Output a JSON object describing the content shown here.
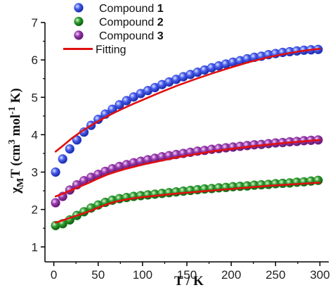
{
  "chart_data": {
    "type": "scatter",
    "xlabel": "T / K",
    "ylabel_parts": {
      "chi": "χ",
      "sub": "M",
      "t": "T (cm",
      "sup3": "3",
      "mol": " mol",
      "supm1": "-1",
      "k": " K)"
    },
    "xlim": [
      -10,
      310
    ],
    "ylim": [
      0.6,
      7.0
    ],
    "x_ticks": [
      0,
      50,
      100,
      150,
      200,
      250,
      300
    ],
    "y_ticks": [
      1,
      2,
      3,
      4,
      5,
      6,
      7
    ],
    "grid": false,
    "legend_position": "top-left",
    "legend": [
      {
        "name": "Compound ",
        "bold": "1",
        "kind": "marker",
        "color": "#2a40d8"
      },
      {
        "name": "Compound ",
        "bold": "2",
        "kind": "marker",
        "color": "#1f8a22"
      },
      {
        "name": "Compound ",
        "bold": "3",
        "kind": "marker",
        "color": "#8a2a9e"
      },
      {
        "name": "Fitting",
        "bold": "",
        "kind": "line",
        "color": "#e01010"
      }
    ],
    "series": [
      {
        "name": "Compound 1",
        "color": "#2a40d8",
        "x": [
          2,
          10,
          18,
          26,
          34,
          42,
          50,
          58,
          66,
          74,
          82,
          90,
          98,
          106,
          114,
          122,
          130,
          138,
          146,
          154,
          162,
          170,
          178,
          186,
          194,
          202,
          210,
          218,
          226,
          234,
          242,
          250,
          258,
          266,
          274,
          282,
          290,
          298
        ],
        "y": [
          3.0,
          3.35,
          3.62,
          3.86,
          4.07,
          4.25,
          4.41,
          4.55,
          4.68,
          4.8,
          4.91,
          5.01,
          5.1,
          5.18,
          5.26,
          5.34,
          5.41,
          5.48,
          5.55,
          5.61,
          5.67,
          5.73,
          5.79,
          5.84,
          5.89,
          5.94,
          5.98,
          6.03,
          6.07,
          6.1,
          6.14,
          6.17,
          6.2,
          6.22,
          6.24,
          6.26,
          6.27,
          6.28
        ]
      },
      {
        "name": "Compound 2",
        "color": "#1f8a22",
        "x": [
          2,
          10,
          18,
          26,
          34,
          42,
          50,
          58,
          66,
          74,
          82,
          90,
          98,
          106,
          114,
          122,
          130,
          138,
          146,
          154,
          162,
          170,
          178,
          186,
          194,
          202,
          210,
          218,
          226,
          234,
          242,
          250,
          258,
          266,
          274,
          282,
          290,
          298
        ],
        "y": [
          1.57,
          1.62,
          1.72,
          1.84,
          1.94,
          2.04,
          2.12,
          2.19,
          2.25,
          2.29,
          2.32,
          2.35,
          2.37,
          2.39,
          2.41,
          2.43,
          2.45,
          2.47,
          2.49,
          2.51,
          2.53,
          2.55,
          2.56,
          2.58,
          2.59,
          2.61,
          2.62,
          2.63,
          2.65,
          2.66,
          2.67,
          2.69,
          2.7,
          2.71,
          2.73,
          2.74,
          2.76,
          2.78
        ]
      },
      {
        "name": "Compound 3",
        "color": "#8a2a9e",
        "x": [
          2,
          10,
          18,
          26,
          34,
          42,
          50,
          58,
          66,
          74,
          82,
          90,
          98,
          106,
          114,
          122,
          130,
          138,
          146,
          154,
          162,
          170,
          178,
          186,
          194,
          202,
          210,
          218,
          226,
          234,
          242,
          250,
          258,
          266,
          274,
          282,
          290,
          298
        ],
        "y": [
          2.18,
          2.35,
          2.52,
          2.66,
          2.77,
          2.86,
          2.94,
          3.02,
          3.09,
          3.15,
          3.2,
          3.25,
          3.29,
          3.33,
          3.37,
          3.41,
          3.44,
          3.47,
          3.5,
          3.53,
          3.56,
          3.58,
          3.61,
          3.63,
          3.65,
          3.67,
          3.69,
          3.71,
          3.73,
          3.74,
          3.76,
          3.78,
          3.79,
          3.81,
          3.82,
          3.84,
          3.85,
          3.86
        ]
      }
    ],
    "fits": [
      {
        "name": "Fitting 1",
        "color": "#e01010",
        "x": [
          2,
          10,
          20,
          30,
          40,
          50,
          60,
          70,
          80,
          90,
          100,
          120,
          140,
          160,
          180,
          200,
          220,
          240,
          260,
          280,
          300
        ],
        "y": [
          3.55,
          3.7,
          3.9,
          4.07,
          4.22,
          4.36,
          4.49,
          4.61,
          4.72,
          4.83,
          4.93,
          5.13,
          5.32,
          5.49,
          5.65,
          5.8,
          5.94,
          6.06,
          6.16,
          6.24,
          6.3
        ]
      },
      {
        "name": "Fitting 2",
        "color": "#e01010",
        "x": [
          2,
          10,
          20,
          30,
          40,
          50,
          60,
          70,
          80,
          90,
          100,
          120,
          140,
          160,
          180,
          200,
          220,
          240,
          260,
          280,
          300
        ],
        "y": [
          1.65,
          1.71,
          1.79,
          1.87,
          1.95,
          2.05,
          2.14,
          2.21,
          2.26,
          2.3,
          2.33,
          2.38,
          2.43,
          2.47,
          2.51,
          2.55,
          2.59,
          2.63,
          2.66,
          2.69,
          2.72
        ]
      },
      {
        "name": "Fitting 3",
        "color": "#e01010",
        "x": [
          2,
          10,
          20,
          30,
          40,
          50,
          60,
          70,
          80,
          90,
          100,
          120,
          140,
          160,
          180,
          200,
          220,
          240,
          260,
          280,
          300
        ],
        "y": [
          2.35,
          2.42,
          2.52,
          2.62,
          2.72,
          2.83,
          2.93,
          3.01,
          3.08,
          3.14,
          3.2,
          3.3,
          3.4,
          3.48,
          3.56,
          3.62,
          3.68,
          3.73,
          3.78,
          3.82,
          3.86
        ]
      }
    ]
  }
}
